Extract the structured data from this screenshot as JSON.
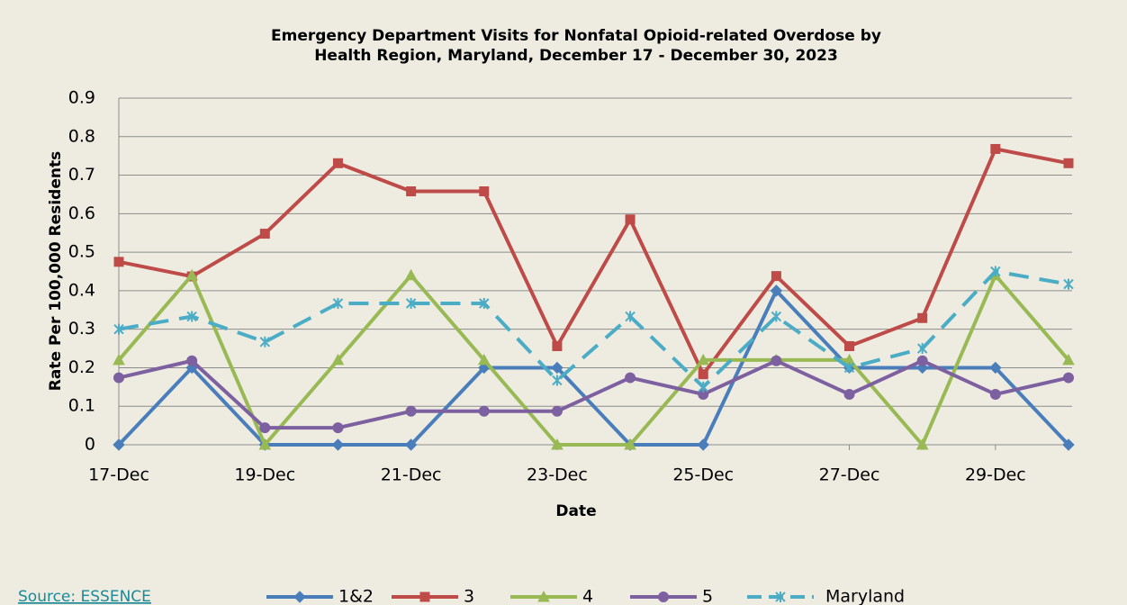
{
  "chart_data": {
    "type": "line",
    "title": [
      "Emergency Department Visits for Nonfatal Opioid-related Overdose by",
      "Health Region, Maryland, December 17 - December 30, 2023"
    ],
    "xlabel": "Date",
    "ylabel": "Rate Per 100,000 Residents",
    "categories": [
      "17-Dec",
      null,
      "19-Dec",
      null,
      "21-Dec",
      null,
      "23-Dec",
      null,
      "25-Dec",
      null,
      "27-Dec",
      null,
      "29-Dec",
      null
    ],
    "ylim": [
      0,
      0.9
    ],
    "yticks": [
      0,
      0.1,
      0.2,
      0.3,
      0.4,
      0.5,
      0.6,
      0.7,
      0.8,
      0.9
    ],
    "grid": true,
    "legend": "bottom",
    "series": [
      {
        "name": "1&2",
        "color": "#4a7ebb",
        "marker": "diamond",
        "values": [
          0,
          0.2,
          0,
          0,
          0,
          0.2,
          0.2,
          0,
          0,
          0.4,
          0.2,
          0.2,
          0.2,
          0
        ]
      },
      {
        "name": "3",
        "color": "#be4b48",
        "marker": "square",
        "values": [
          0.475,
          0.437,
          0.548,
          0.731,
          0.658,
          0.658,
          0.256,
          0.585,
          0.183,
          0.438,
          0.256,
          0.329,
          0.768,
          0.731
        ]
      },
      {
        "name": "4",
        "color": "#98b954",
        "marker": "triangle",
        "values": [
          0.22,
          0.44,
          0,
          0.22,
          0.44,
          0.22,
          0,
          0,
          0.22,
          0.22,
          0.22,
          0,
          0.44,
          0.22
        ]
      },
      {
        "name": "5",
        "color": "#7d60a0",
        "marker": "circle",
        "values": [
          0.174,
          0.218,
          0.044,
          0.044,
          0.087,
          0.087,
          0.087,
          0.174,
          0.131,
          0.218,
          0.131,
          0.218,
          0.131,
          0.174
        ]
      },
      {
        "name": "Maryland",
        "color": "#4bacc6",
        "marker": "x",
        "dashed": true,
        "values": [
          0.3,
          0.333,
          0.267,
          0.367,
          0.367,
          0.367,
          0.167,
          0.333,
          0.15,
          0.333,
          0.2,
          0.25,
          0.45,
          0.417
        ]
      }
    ]
  },
  "source_link": "Source: ESSENCE"
}
